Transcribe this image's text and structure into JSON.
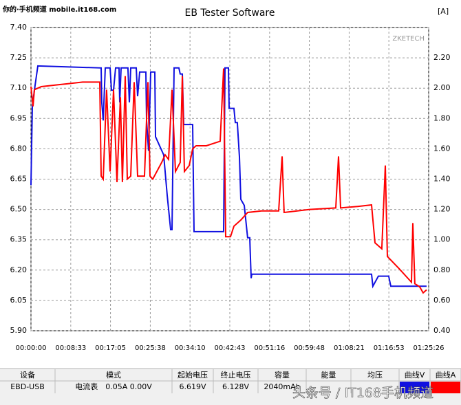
{
  "watermark_top": "你的·手机频道 mobile.it168.com",
  "watermark_bottom": "头条号 / IT168手机频道",
  "brand": "ZKETECH",
  "chart_data": {
    "type": "line",
    "title": "EB Tester Software",
    "y2_label": "[A]",
    "xlim": [
      0,
      5126
    ],
    "xticks": [
      {
        "value": 0,
        "label": "00:00:00"
      },
      {
        "value": 513,
        "label": "00:08:33"
      },
      {
        "value": 1025,
        "label": "00:17:05"
      },
      {
        "value": 1538,
        "label": "00:25:38"
      },
      {
        "value": 2050,
        "label": "00:34:10"
      },
      {
        "value": 2563,
        "label": "00:42:43"
      },
      {
        "value": 3076,
        "label": "00:51:16"
      },
      {
        "value": 3588,
        "label": "00:59:48"
      },
      {
        "value": 4101,
        "label": "01:08:21"
      },
      {
        "value": 4613,
        "label": "01:16:53"
      },
      {
        "value": 5126,
        "label": "01:25:26"
      }
    ],
    "ylim": [
      5.9,
      7.4
    ],
    "yticks": [
      {
        "value": 5.9,
        "label": "5.90"
      },
      {
        "value": 6.05,
        "label": "6.05"
      },
      {
        "value": 6.2,
        "label": "6.20"
      },
      {
        "value": 6.35,
        "label": "6.35"
      },
      {
        "value": 6.5,
        "label": "6.50"
      },
      {
        "value": 6.65,
        "label": "6.65"
      },
      {
        "value": 6.8,
        "label": "6.80"
      },
      {
        "value": 6.95,
        "label": "6.95"
      },
      {
        "value": 7.1,
        "label": "7.10"
      },
      {
        "value": 7.25,
        "label": "7.25"
      },
      {
        "value": 7.4,
        "label": "7.40"
      }
    ],
    "y2lim": [
      0.4,
      2.4
    ],
    "y2ticks": [
      {
        "value": 0.4,
        "label": "0.40"
      },
      {
        "value": 0.6,
        "label": "0.60"
      },
      {
        "value": 0.8,
        "label": "0.80"
      },
      {
        "value": 1,
        "label": "1.00"
      },
      {
        "value": 1.2,
        "label": "1.20"
      },
      {
        "value": 1.4,
        "label": "1.40"
      },
      {
        "value": 1.6,
        "label": "1.60"
      },
      {
        "value": 1.8,
        "label": "1.80"
      },
      {
        "value": 2,
        "label": "2.00"
      },
      {
        "value": 2.2,
        "label": "2.20"
      }
    ],
    "grid": true,
    "series": [
      {
        "name": "曲线V",
        "color": "#1010e0",
        "axis": "y",
        "x": [
          0,
          18,
          44,
          89,
          905,
          913,
          931,
          958,
          1020,
          1038,
          1064,
          1091,
          1135,
          1144,
          1162,
          1250,
          1268,
          1286,
          1357,
          1375,
          1401,
          1481,
          1490,
          1516,
          1543,
          1596,
          1605,
          1711,
          1756,
          1800,
          1818,
          1845,
          1907,
          1924,
          1951,
          1969,
          2084,
          2102,
          2483,
          2501,
          2545,
          2554,
          2616,
          2634,
          2660,
          2687,
          2705,
          2749,
          2793,
          2820,
          2838,
          2847,
          4301,
          4390,
          4407,
          4478,
          4611,
          4638,
          5099
        ],
        "values": [
          6.62,
          7.01,
          7.09,
          7.21,
          7.2,
          7.03,
          6.94,
          7.2,
          7.2,
          7.09,
          7.09,
          7.2,
          7.2,
          7.03,
          7.2,
          7.2,
          7.03,
          7.2,
          7.2,
          7.06,
          7.18,
          7.18,
          6.94,
          6.79,
          7.18,
          7.18,
          6.86,
          6.77,
          6.57,
          6.4,
          6.4,
          7.2,
          7.2,
          7.17,
          7.17,
          6.92,
          6.92,
          6.39,
          6.39,
          7.2,
          7.2,
          7.0,
          7.0,
          6.93,
          6.93,
          6.76,
          6.55,
          6.52,
          6.36,
          6.36,
          6.16,
          6.18,
          6.18,
          6.18,
          6.12,
          6.17,
          6.17,
          6.12,
          6.12
        ]
      },
      {
        "name": "曲线A",
        "color": "#ff0000",
        "axis": "y2",
        "x": [
          0,
          27,
          44,
          133,
          310,
          488,
          665,
          887,
          905,
          931,
          975,
          1020,
          1064,
          1109,
          1153,
          1179,
          1215,
          1242,
          1286,
          1330,
          1375,
          1463,
          1508,
          1534,
          1570,
          1685,
          1729,
          1774,
          1818,
          1862,
          1924,
          1951,
          1978,
          2040,
          2084,
          2128,
          2261,
          2439,
          2483,
          2510,
          2572,
          2616,
          2705,
          2793,
          2971,
          3193,
          3237,
          3263,
          3592,
          3929,
          3964,
          3991,
          4212,
          4390,
          4434,
          4522,
          4567,
          4594,
          4744,
          4904,
          4922,
          4948,
          5010,
          5055,
          5099
        ],
        "values": [
          2.01,
          1.88,
          1.99,
          2.01,
          2.02,
          2.03,
          2.04,
          2.04,
          1.42,
          1.4,
          1.99,
          1.45,
          1.99,
          1.38,
          1.94,
          1.38,
          2.08,
          1.4,
          1.42,
          2.04,
          1.42,
          1.42,
          2.04,
          1.42,
          1.4,
          1.51,
          1.56,
          1.53,
          1.99,
          1.45,
          1.51,
          2.08,
          1.45,
          1.49,
          1.6,
          1.62,
          1.62,
          1.65,
          2.13,
          1.02,
          1.02,
          1.09,
          1.13,
          1.18,
          1.19,
          1.19,
          1.55,
          1.18,
          1.2,
          1.21,
          1.55,
          1.21,
          1.22,
          1.23,
          0.98,
          0.94,
          1.49,
          0.89,
          0.81,
          0.72,
          1.11,
          0.71,
          0.69,
          0.65,
          0.67
        ]
      }
    ]
  },
  "table": {
    "headers": [
      "设备",
      "模式",
      "起始电压",
      "终止电压",
      "容量",
      "能量",
      "均压",
      "曲线V",
      "曲线A"
    ],
    "row": [
      "EBD-USB",
      "电流表　0.05A  0.00V",
      "6.619V",
      "6.128V",
      "2040mAh"
    ]
  }
}
